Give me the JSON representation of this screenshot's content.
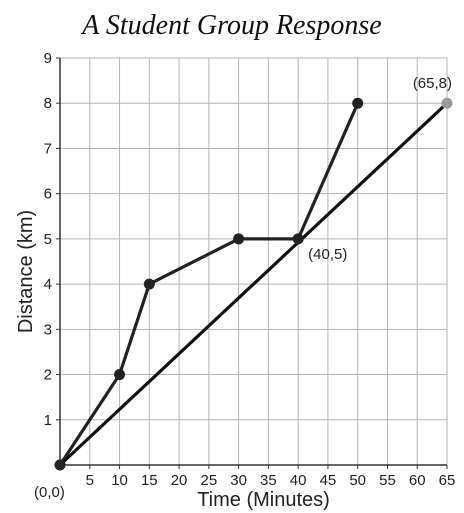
{
  "chart_data": {
    "type": "line",
    "title": "A Student Group Response",
    "xlabel": "Time (Minutes)",
    "ylabel": "Distance (km)",
    "xlim": [
      0,
      65
    ],
    "ylim": [
      0,
      9
    ],
    "x_ticks": [
      "5",
      "10",
      "15",
      "20",
      "25",
      "30",
      "35",
      "40",
      "45",
      "50",
      "55",
      "60",
      "65"
    ],
    "y_ticks": [
      "1",
      "2",
      "3",
      "4",
      "5",
      "6",
      "7",
      "8",
      "9"
    ],
    "grid": true,
    "series": [
      {
        "x": [
          0,
          10,
          15,
          30,
          40,
          50
        ],
        "y": [
          0,
          2,
          4,
          5,
          5,
          8
        ],
        "color": "#222222"
      },
      {
        "x": [
          0,
          65
        ],
        "y": [
          0,
          8
        ],
        "color": "#111111"
      }
    ],
    "annotations": [
      {
        "text": "(0,0)",
        "x": 0,
        "y": 0
      },
      {
        "text": "(40,5)",
        "x": 40,
        "y": 5
      },
      {
        "text": "(65,8)",
        "x": 65,
        "y": 8
      }
    ],
    "point_colors": {
      "data": "#222222",
      "endpoint": "#9a9a9a"
    }
  }
}
